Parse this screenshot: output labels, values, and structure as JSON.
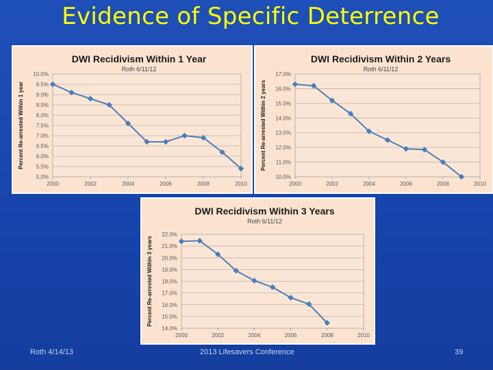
{
  "slide": {
    "title": "Evidence of Specific Deterrence",
    "footer_left": "Roth 4/14/13",
    "footer_center": "2013 Lifesavers Conference",
    "page_number": "39"
  },
  "colors": {
    "background": "#1745ad",
    "title": "#ffff00",
    "panel": "#fce3d0",
    "line": "#4a7ebb"
  },
  "chart_data": [
    {
      "type": "line",
      "title": "DWI Recidivism Within 1 Year",
      "subtitle": "Roth 6/11/12",
      "xlabel": "",
      "ylabel": "Percent Re-arrested Within 1 year",
      "xlim": [
        2000,
        2010
      ],
      "x_ticks": [
        2000,
        2002,
        2004,
        2006,
        2008,
        2010
      ],
      "x_tick_labels": [
        "2000",
        "2002",
        "2004",
        "2006",
        "2008",
        "2010"
      ],
      "ylim": [
        5.0,
        10.0
      ],
      "y_ticks": [
        5.0,
        5.5,
        6.0,
        6.5,
        7.0,
        7.5,
        8.0,
        8.5,
        9.0,
        9.5,
        10.0
      ],
      "y_tick_labels": [
        "5.0%",
        "5.5%",
        "6.0%",
        "6.5%",
        "7.0%",
        "7.5%",
        "8.0%",
        "8.5%",
        "9.0%",
        "9.5%",
        "10.0%"
      ],
      "grid": true,
      "series": [
        {
          "name": "Within 1 Year",
          "x": [
            2000,
            2001,
            2002,
            2003,
            2004,
            2005,
            2006,
            2007,
            2008,
            2009,
            2010
          ],
          "y": [
            9.5,
            9.1,
            8.8,
            8.5,
            7.6,
            6.7,
            6.7,
            7.0,
            6.9,
            6.2,
            5.4
          ]
        }
      ]
    },
    {
      "type": "line",
      "title": "DWI Recidivism Within 2 Years",
      "subtitle": "Roth 6/11/12",
      "xlabel": "",
      "ylabel": "Percent Re-arrested Within 2 years",
      "xlim": [
        2000,
        2010
      ],
      "x_ticks": [
        2000,
        2002,
        2004,
        2006,
        2008,
        2010
      ],
      "x_tick_labels": [
        "2000",
        "2002",
        "2004",
        "2006",
        "2008",
        "2010"
      ],
      "ylim": [
        10.0,
        17.0
      ],
      "y_ticks": [
        10.0,
        11.0,
        12.0,
        13.0,
        14.0,
        15.0,
        16.0,
        17.0
      ],
      "y_tick_labels": [
        "10.0%",
        "11.0%",
        "12.0%",
        "13.0%",
        "14.0%",
        "15.0%",
        "16.0%",
        "17.0%"
      ],
      "grid": true,
      "series": [
        {
          "name": "Within 2 Years",
          "x": [
            2000,
            2001,
            2002,
            2003,
            2004,
            2005,
            2006,
            2007,
            2008,
            2009
          ],
          "y": [
            16.3,
            16.2,
            15.2,
            14.3,
            13.1,
            12.5,
            11.9,
            11.85,
            11.0,
            10.0
          ]
        }
      ]
    },
    {
      "type": "line",
      "title": "DWI Recidivism Within 3 Years",
      "subtitle": "Roth 6/11/12",
      "xlabel": "",
      "ylabel": "Percent Re-arrested Within 3 years",
      "xlim": [
        2000,
        2010
      ],
      "x_ticks": [
        2000,
        2002,
        2004,
        2006,
        2008,
        2010
      ],
      "x_tick_labels": [
        "2000",
        "2002",
        "2004",
        "2006",
        "2008",
        "2010"
      ],
      "ylim": [
        14.0,
        22.0
      ],
      "y_ticks": [
        14.0,
        15.0,
        16.0,
        17.0,
        18.0,
        19.0,
        20.0,
        21.0,
        22.0
      ],
      "y_tick_labels": [
        "14.0%",
        "15.0%",
        "16.0%",
        "17.0%",
        "18.0%",
        "19.0%",
        "20.0%",
        "21.0%",
        "22.0%"
      ],
      "grid": true,
      "series": [
        {
          "name": "Within 3 Years",
          "x": [
            2000,
            2001,
            2002,
            2003,
            2004,
            2005,
            2006,
            2007,
            2008
          ],
          "y": [
            21.4,
            21.45,
            20.3,
            18.9,
            18.05,
            17.5,
            16.6,
            16.05,
            14.45
          ]
        }
      ]
    }
  ]
}
